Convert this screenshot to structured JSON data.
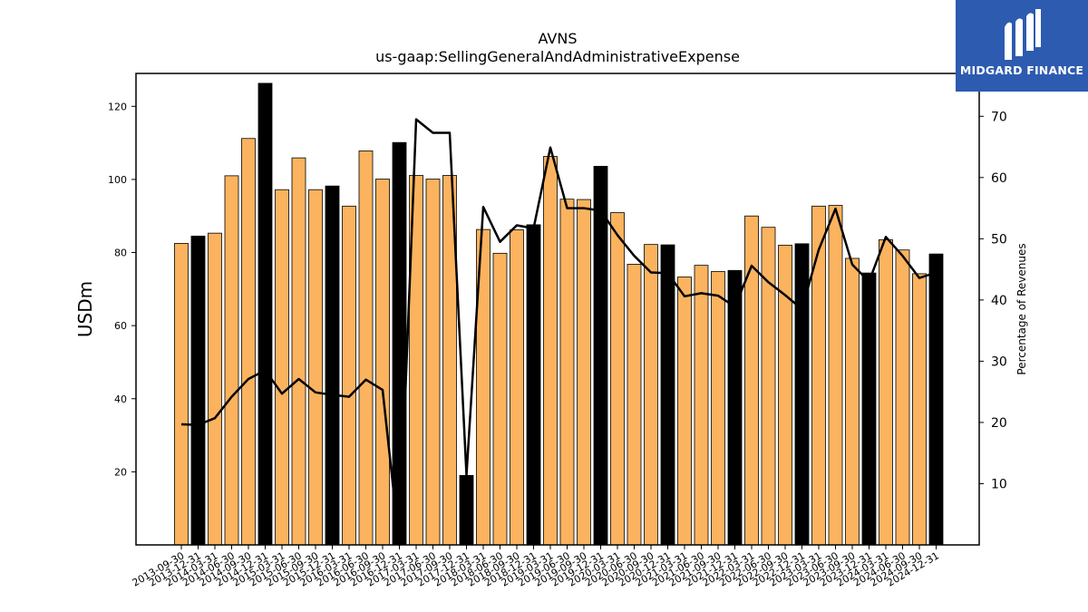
{
  "chart_data": {
    "type": "bar",
    "title": "AVNS",
    "subtitle": "us-gaap:SellingGeneralAndAdministrativeExpense",
    "ylabel": "USDm",
    "y2label": "Percentage of Revenues",
    "ylim": [
      0,
      129
    ],
    "y2lim": [
      0,
      77
    ],
    "yticks": [
      20,
      40,
      60,
      80,
      100,
      120
    ],
    "y2ticks": [
      10,
      20,
      30,
      40,
      50,
      60,
      70
    ],
    "colors": {
      "quarter": "#fbb35f",
      "year_end": "#000000",
      "line": "#000000"
    },
    "categories": [
      "2013-09-30",
      "2013-12-31",
      "2014-03-31",
      "2014-06-30",
      "2014-09-30",
      "2014-12-31",
      "2015-03-31",
      "2015-06-30",
      "2015-09-30",
      "2015-12-31",
      "2016-03-31",
      "2016-06-30",
      "2016-09-30",
      "2016-12-31",
      "2017-03-31",
      "2017-06-30",
      "2017-09-30",
      "2017-12-31",
      "2018-03-31",
      "2018-06-30",
      "2018-09-30",
      "2018-12-31",
      "2019-03-31",
      "2019-06-30",
      "2019-09-30",
      "2019-12-31",
      "2020-03-31",
      "2020-06-30",
      "2020-09-30",
      "2020-12-31",
      "2021-03-31",
      "2021-06-30",
      "2021-09-30",
      "2021-12-31",
      "2022-03-31",
      "2022-06-30",
      "2022-09-30",
      "2022-12-31",
      "2023-03-31",
      "2023-06-30",
      "2023-09-30",
      "2023-12-31",
      "2024-03-31",
      "2024-06-30",
      "2024-09-30",
      "2024-12-31"
    ],
    "series": [
      {
        "kind": "bar",
        "values": [
          82.5,
          84.5,
          85.3,
          101.0,
          111.2,
          126.3,
          97.2,
          105.9,
          97.2,
          98.2,
          92.7,
          107.8,
          100.1,
          110.1,
          101.1,
          100.1,
          101.1,
          19.0,
          86.3,
          79.8,
          86.2,
          87.6,
          106.3,
          94.6,
          94.5,
          103.6,
          90.9,
          76.8,
          82.2,
          82.1,
          73.3,
          76.5,
          74.8,
          75.1,
          90.0,
          86.9,
          82.0,
          82.4,
          92.7,
          92.9,
          78.4,
          74.4,
          83.5,
          80.7,
          74.2,
          79.6
        ]
      },
      {
        "kind": "line",
        "axis": "right",
        "values": [
          19.7,
          19.6,
          20.7,
          24.2,
          27.1,
          28.5,
          24.7,
          27.1,
          24.9,
          24.5,
          24.2,
          27.0,
          25.3,
          0.0,
          69.5,
          67.3,
          67.3,
          11.4,
          55.2,
          49.5,
          52.2,
          51.7,
          64.9,
          55.0,
          55.0,
          54.6,
          50.6,
          47.2,
          44.5,
          44.4,
          40.6,
          41.1,
          40.7,
          38.9,
          45.6,
          42.9,
          40.8,
          38.5,
          48.2,
          54.9,
          45.8,
          43.0,
          50.3,
          47.2,
          43.6,
          44.5
        ]
      }
    ]
  },
  "logo": {
    "text": "MIDGARD FINANCE"
  }
}
